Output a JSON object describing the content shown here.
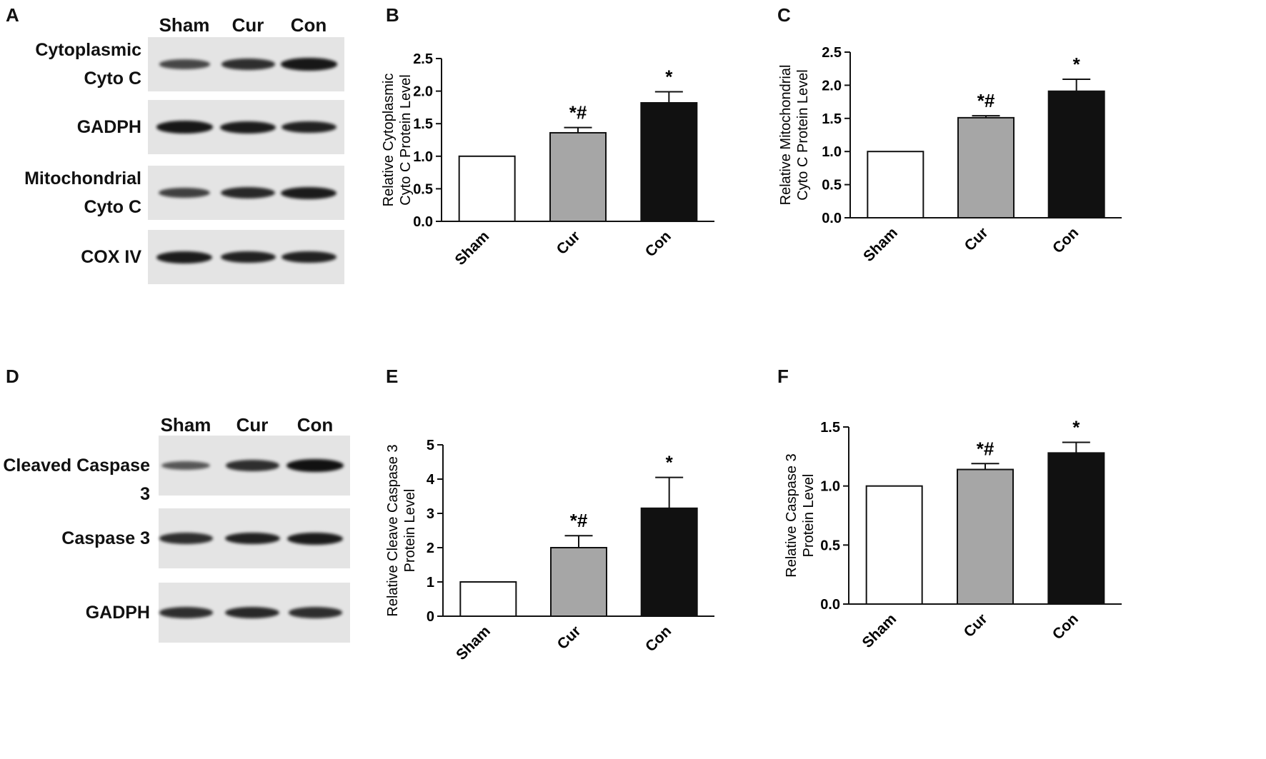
{
  "panels": {
    "A": "A",
    "B": "B",
    "C": "C",
    "D": "D",
    "E": "E",
    "F": "F"
  },
  "blot_A": {
    "lanes": [
      "Sham",
      "Cur",
      "Con"
    ],
    "rows": [
      {
        "label": "Cytoplasmic\nCyto C",
        "intensity": [
          0.55,
          0.75,
          0.95
        ]
      },
      {
        "label": "GADPH",
        "intensity": [
          0.95,
          0.9,
          0.85
        ]
      },
      {
        "label": "Mitochondrial\nCyto C",
        "intensity": [
          0.6,
          0.8,
          0.9
        ]
      },
      {
        "label": "COX IV",
        "intensity": [
          0.9,
          0.85,
          0.85
        ]
      }
    ]
  },
  "blot_D": {
    "lanes": [
      "Sham",
      "Cur",
      "Con"
    ],
    "rows": [
      {
        "label": "Cleaved Caspase 3",
        "intensity": [
          0.4,
          0.75,
          1.0
        ]
      },
      {
        "label": "Caspase 3",
        "intensity": [
          0.75,
          0.85,
          0.9
        ]
      },
      {
        "label": "GADPH",
        "intensity": [
          0.75,
          0.8,
          0.75
        ]
      }
    ]
  },
  "chart_data": [
    {
      "panel": "B",
      "type": "bar",
      "categories": [
        "Sham",
        "Cur",
        "Con"
      ],
      "values": [
        1.0,
        1.36,
        1.82
      ],
      "errors": [
        0,
        0.08,
        0.17
      ],
      "annotations": [
        "",
        "*#",
        "*"
      ],
      "bar_colors": [
        "#ffffff",
        "#a6a6a6",
        "#111111"
      ],
      "ylabel": "Relative Cytoplasmic\nCyto C Protein Level",
      "ylim": [
        0,
        2.5
      ],
      "yticks": [
        "0.0",
        "0.5",
        "1.0",
        "1.5",
        "2.0",
        "2.5"
      ]
    },
    {
      "panel": "C",
      "type": "bar",
      "categories": [
        "Sham",
        "Cur",
        "Con"
      ],
      "values": [
        1.0,
        1.51,
        1.91
      ],
      "errors": [
        0,
        0.03,
        0.18
      ],
      "annotations": [
        "",
        "*#",
        "*"
      ],
      "bar_colors": [
        "#ffffff",
        "#a6a6a6",
        "#111111"
      ],
      "ylabel": "Relative Mitochondrial\nCyto C Protein Level",
      "ylim": [
        0,
        2.5
      ],
      "yticks": [
        "0.0",
        "0.5",
        "1.0",
        "1.5",
        "2.0",
        "2.5"
      ]
    },
    {
      "panel": "E",
      "type": "bar",
      "categories": [
        "Sham",
        "Cur",
        "Con"
      ],
      "values": [
        1.0,
        2.0,
        3.15
      ],
      "errors": [
        0,
        0.35,
        0.9
      ],
      "annotations": [
        "",
        "*#",
        "*"
      ],
      "bar_colors": [
        "#ffffff",
        "#a6a6a6",
        "#111111"
      ],
      "ylabel": "Relative Cleave Caspase 3\nProtein Level",
      "ylim": [
        0,
        5
      ],
      "yticks": [
        "0",
        "1",
        "2",
        "3",
        "4",
        "5"
      ]
    },
    {
      "panel": "F",
      "type": "bar",
      "categories": [
        "Sham",
        "Cur",
        "Con"
      ],
      "values": [
        1.0,
        1.14,
        1.28
      ],
      "errors": [
        0,
        0.05,
        0.09
      ],
      "annotations": [
        "",
        "*#",
        "*"
      ],
      "bar_colors": [
        "#ffffff",
        "#a6a6a6",
        "#111111"
      ],
      "ylabel": "Relative Caspase 3\nProtein Level",
      "ylim": [
        0,
        1.5
      ],
      "yticks": [
        "0.0",
        "0.5",
        "1.0",
        "1.5"
      ]
    }
  ]
}
